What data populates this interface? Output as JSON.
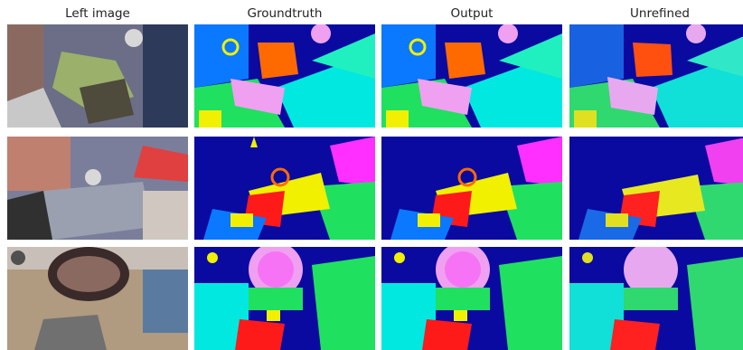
{
  "columns": [
    {
      "label": "Left image"
    },
    {
      "label": "Groundtruth"
    },
    {
      "label": "Output"
    },
    {
      "label": "Unrefined"
    }
  ],
  "rows": [
    {
      "id": "scene-1"
    },
    {
      "id": "scene-2"
    },
    {
      "id": "scene-3"
    }
  ],
  "colors": {
    "deep_blue": "#0a0aa0",
    "cyan": "#00e8e0",
    "green": "#20e060",
    "yellow": "#f0f000",
    "orange": "#ff6a00",
    "red": "#ff1a1a",
    "magenta": "#ff30ff",
    "pink": "#f0a0f0"
  }
}
